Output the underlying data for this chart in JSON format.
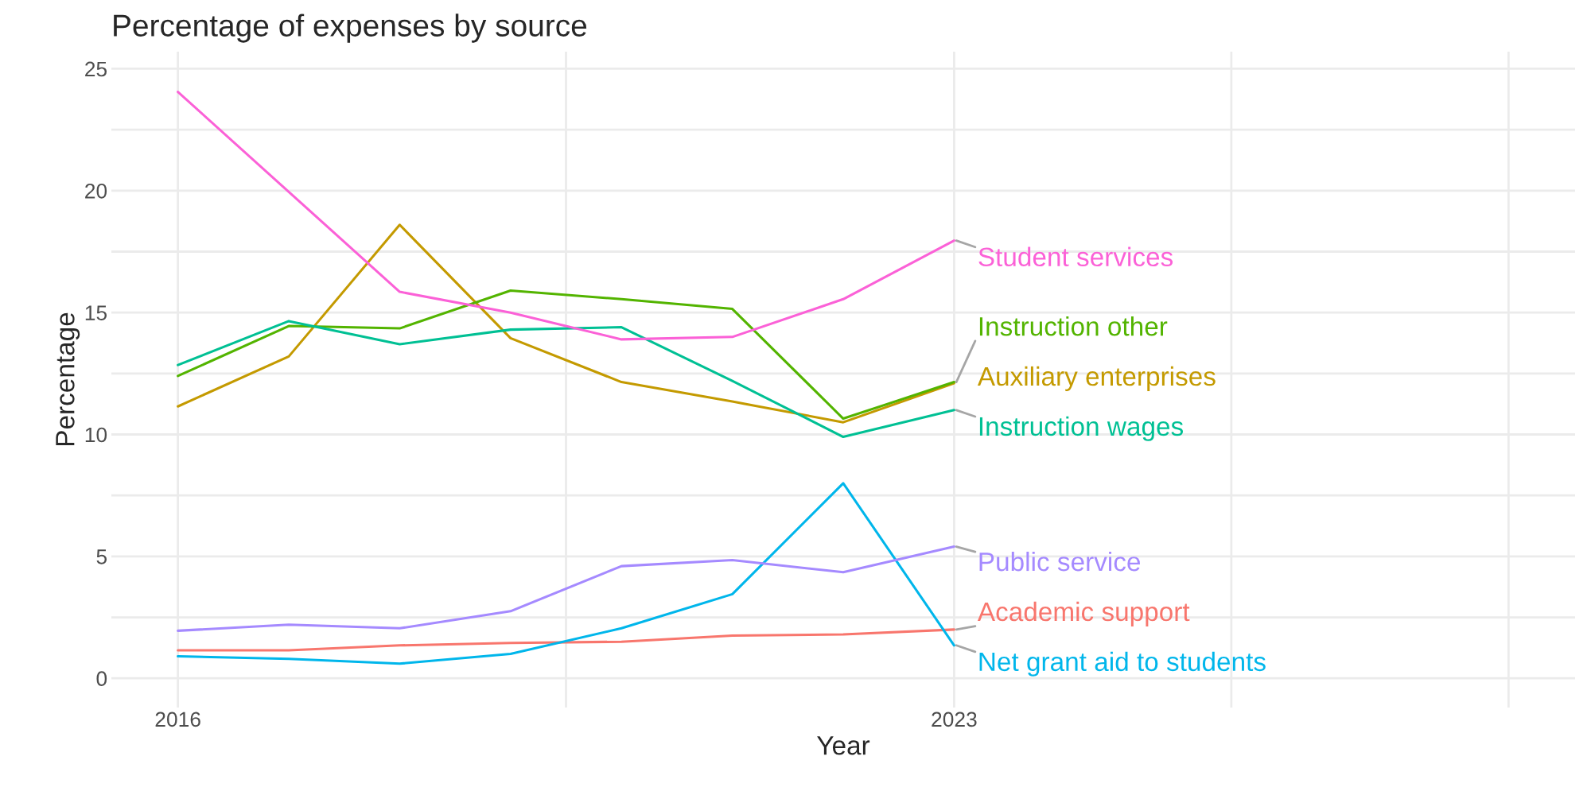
{
  "chart_data": {
    "type": "line",
    "title": "Percentage of expenses by source",
    "xlabel": "Year",
    "ylabel": "Percentage",
    "x": [
      2016,
      2017,
      2018,
      2019,
      2020,
      2021,
      2022,
      2023
    ],
    "series": [
      {
        "name": "Academic support",
        "color": "#f8766d",
        "values": [
          1.15,
          1.15,
          1.35,
          1.45,
          1.5,
          1.75,
          1.8,
          2.0
        ]
      },
      {
        "name": "Auxiliary enterprises",
        "color": "#c49a00",
        "values": [
          11.15,
          13.2,
          18.6,
          13.95,
          12.15,
          11.35,
          10.5,
          12.1
        ]
      },
      {
        "name": "Instruction other",
        "color": "#53b400",
        "values": [
          12.4,
          14.45,
          14.35,
          15.9,
          15.55,
          15.15,
          10.65,
          12.15
        ]
      },
      {
        "name": "Instruction wages",
        "color": "#00c094",
        "values": [
          12.85,
          14.65,
          13.7,
          14.3,
          14.4,
          12.2,
          9.9,
          11.0
        ]
      },
      {
        "name": "Net grant aid to students",
        "color": "#00b6eb",
        "values": [
          0.9,
          0.8,
          0.6,
          1.0,
          2.05,
          3.45,
          8.0,
          1.35
        ]
      },
      {
        "name": "Public service",
        "color": "#a58aff",
        "values": [
          1.95,
          2.2,
          2.05,
          2.75,
          4.6,
          4.85,
          4.35,
          5.4
        ]
      },
      {
        "name": "Student services",
        "color": "#fb61d7",
        "values": [
          24.05,
          19.95,
          15.85,
          15.0,
          13.9,
          14.0,
          15.55,
          17.95
        ]
      }
    ],
    "xlim": [
      2015.4,
      2028.6
    ],
    "xticks": [
      2016,
      {
        "value": 2019.5,
        "label": null
      },
      2023,
      {
        "value": 2025.5,
        "label": null
      },
      {
        "value": 2028,
        "label": null
      }
    ],
    "ylim": [
      -1.2,
      25.7
    ],
    "yticks": [
      0,
      {
        "value": 2.5,
        "label": null
      },
      5,
      {
        "value": 7.5,
        "label": null
      },
      10,
      {
        "value": 12.5,
        "label": null
      },
      15,
      {
        "value": 17.5,
        "label": null
      },
      20,
      {
        "value": 22.5,
        "label": null
      },
      25
    ],
    "grid": true,
    "legend": false,
    "marker": "none",
    "line_style": "solid"
  }
}
